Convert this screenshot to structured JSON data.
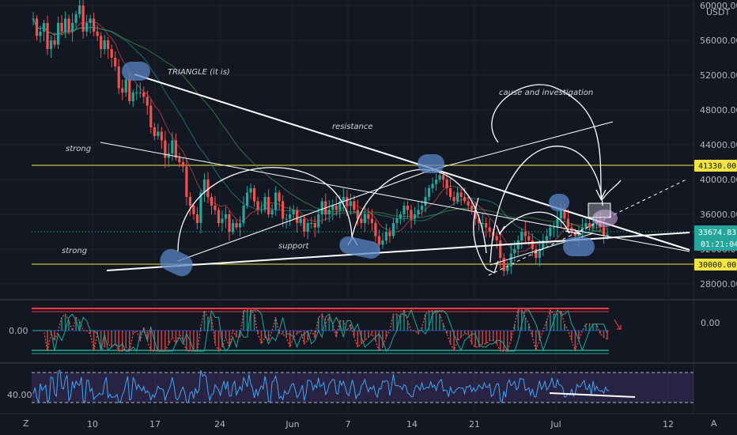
{
  "header": {
    "currency": "USDT"
  },
  "chart_data": {
    "type": "candlestick",
    "price_axis": {
      "ticks": [
        "60000.00",
        "56000.00",
        "52000.00",
        "48000.00",
        "44000.00",
        "40000.00",
        "36000.00",
        "32000.00",
        "28000.00"
      ],
      "ylim": [
        26000,
        61000
      ]
    },
    "badges": {
      "resistance_level": "41330.00",
      "last_price": "33674.83",
      "countdown": "01:21:04",
      "support_level": "30000.00"
    },
    "time_axis": {
      "labels": [
        "10",
        "17",
        "24",
        "Jun",
        "7",
        "14",
        "21",
        "Jul",
        "12"
      ]
    },
    "horizontal_lines": [
      {
        "value": 41330,
        "color": "#f0e442"
      },
      {
        "value": 30000,
        "color": "#f0e442"
      }
    ],
    "annotations": {
      "triangle": "TRIANGLE (it is)",
      "resistance": "resistance",
      "strong_top": "strong",
      "strong_bottom": "strong",
      "support": "support",
      "cause": "cause and investigation"
    },
    "price_series": [
      58500,
      56500,
      57000,
      58000,
      55000,
      56000,
      55500,
      58000,
      57000,
      58500,
      57000,
      58000,
      59000,
      60000,
      57000,
      58000,
      58500,
      57000,
      56500,
      55000,
      56000,
      55000,
      54000,
      53000,
      50500,
      50000,
      51500,
      49000,
      50000,
      50000,
      50000,
      49500,
      48500,
      46000,
      45000,
      45500,
      44500,
      42500,
      43000,
      44500,
      42500,
      42000,
      41500,
      38000,
      37000,
      36000,
      35000,
      38500,
      40000,
      38000,
      37000,
      36500,
      35000,
      35500,
      36000,
      34000,
      35000,
      34500,
      35000,
      37000,
      38500,
      39000,
      37500,
      36500,
      36500,
      38000,
      36000,
      36500,
      38500,
      37500,
      35500,
      35500,
      36000,
      36500,
      35000,
      35500,
      34000,
      35000,
      35000,
      34500,
      36000,
      37500,
      36000,
      36500,
      37000,
      36500,
      37500,
      38000,
      37000,
      37500,
      36500,
      35500,
      35000,
      36000,
      35500,
      35000,
      33500,
      32500,
      33000,
      34000,
      33500,
      35000,
      35500,
      36000,
      37000,
      36500,
      35500,
      36000,
      36500,
      37000,
      38000,
      39000,
      39500,
      40000,
      40500,
      40000,
      39000,
      38000,
      37500,
      38500,
      38000,
      37500,
      37000,
      36500,
      35500,
      35000,
      35000,
      34500,
      34000,
      33500,
      33000,
      31000,
      29500,
      30000,
      31500,
      32000,
      33000,
      34000,
      33500,
      33000,
      32000,
      31000,
      32000,
      33000,
      33500,
      34500,
      34500,
      35500,
      36500,
      35500,
      34500,
      34000,
      33500,
      34000,
      34500,
      35000,
      34500,
      35000,
      35500,
      34500,
      33500,
      33700
    ],
    "oscillator": {
      "tick": "0.00",
      "value_tick": "0.00"
    },
    "rsi": {
      "tick": "40.00"
    },
    "corner_left": "Z",
    "corner_right": "A"
  }
}
